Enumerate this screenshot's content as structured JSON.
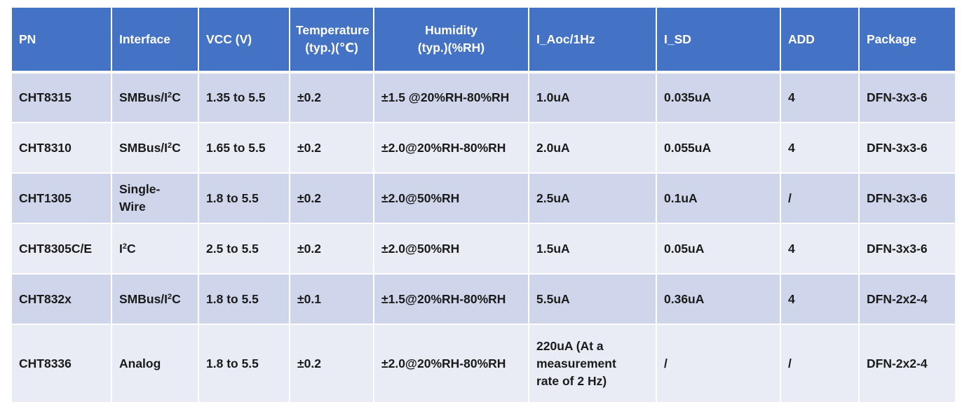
{
  "table": {
    "headers": [
      {
        "label": "PN"
      },
      {
        "label": "Interface"
      },
      {
        "label": "VCC (V)"
      },
      {
        "label": "Temperature (typ.)(℃)"
      },
      {
        "label": "Humidity (typ.)(%RH)"
      },
      {
        "label": "I_Aoc/1Hz"
      },
      {
        "label": "I_SD"
      },
      {
        "label": "ADD"
      },
      {
        "label": "Package"
      }
    ],
    "rows": [
      {
        "pn": "CHT8315",
        "interface_pre": "SMBus/I",
        "interface_sup": "2",
        "interface_post": "C",
        "vcc": "1.35 to 5.5",
        "temp": "±0.2",
        "humidity": "±1.5 @20%RH-80%RH",
        "i_aoc": "1.0uA",
        "i_sd": "0.035uA",
        "add": "4",
        "package": "DFN-3x3-6"
      },
      {
        "pn": "CHT8310",
        "interface_pre": "SMBus/I",
        "interface_sup": "2",
        "interface_post": "C",
        "vcc": "1.65 to 5.5",
        "temp": "±0.2",
        "humidity": "±2.0@20%RH-80%RH",
        "i_aoc": "2.0uA",
        "i_sd": "0.055uA",
        "add": "4",
        "package": "DFN-3x3-6"
      },
      {
        "pn": "CHT1305",
        "interface_pre": "Single-Wire",
        "interface_sup": "",
        "interface_post": "",
        "vcc": "1.8 to 5.5",
        "temp": "±0.2",
        "humidity": "±2.0@50%RH",
        "i_aoc": "2.5uA",
        "i_sd": "0.1uA",
        "add": "/",
        "package": "DFN-3x3-6"
      },
      {
        "pn": "CHT8305C/E",
        "interface_pre": "I",
        "interface_sup": "2",
        "interface_post": "C",
        "vcc": "2.5 to 5.5",
        "temp": "±0.2",
        "humidity": "±2.0@50%RH",
        "i_aoc": "1.5uA",
        "i_sd": "0.05uA",
        "add": "4",
        "package": "DFN-3x3-6"
      },
      {
        "pn": "CHT832x",
        "interface_pre": "SMBus/I",
        "interface_sup": "2",
        "interface_post": "C",
        "vcc": "1.8 to 5.5",
        "temp": "±0.1",
        "humidity": "±1.5@20%RH-80%RH",
        "i_aoc": "5.5uA",
        "i_sd": "0.36uA",
        "add": "4",
        "package": "DFN-2x2-4"
      },
      {
        "pn": "CHT8336",
        "interface_pre": "Analog",
        "interface_sup": "",
        "interface_post": "",
        "vcc": "1.8 to 5.5",
        "temp": "±0.2",
        "humidity": "±2.0@20%RH-80%RH",
        "i_aoc": "220uA (At a measurement rate of 2 Hz)",
        "i_sd": "/",
        "add": "/",
        "package": "DFN-2x2-4"
      }
    ]
  },
  "colors": {
    "header_bg": "#4472c4",
    "row_odd_bg": "#cfd5ea",
    "row_even_bg": "#e9ebf5"
  }
}
